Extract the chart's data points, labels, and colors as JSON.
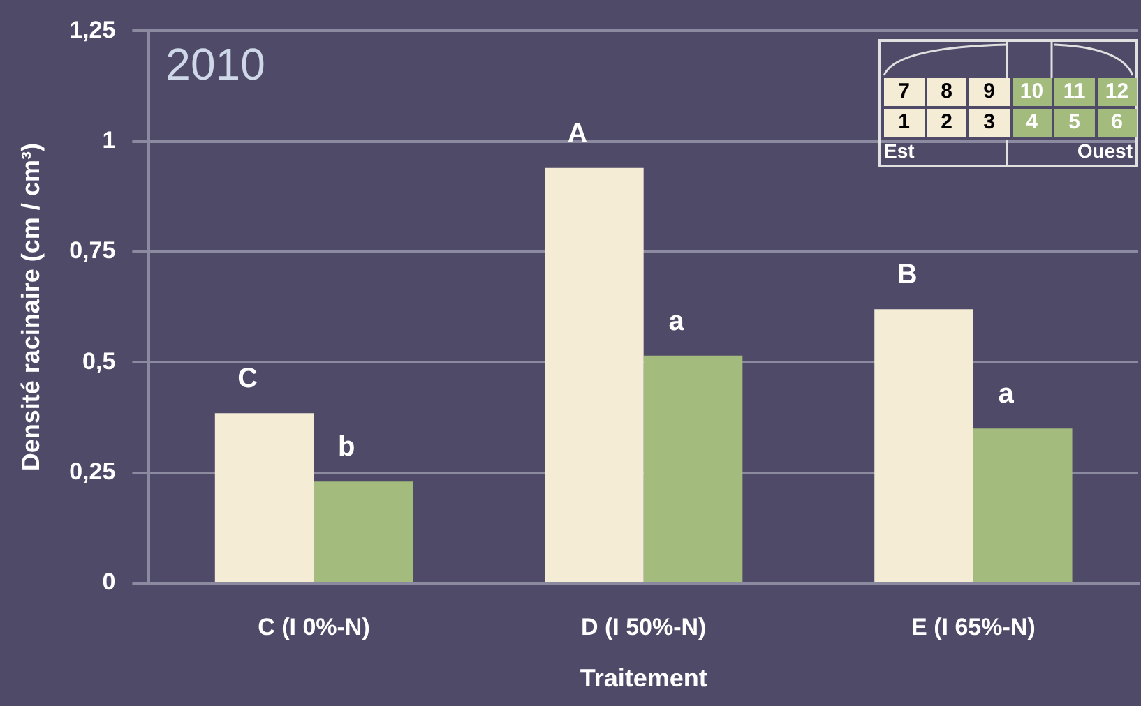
{
  "chart_data": {
    "type": "bar",
    "title": "2010",
    "xlabel": "Traitement",
    "ylabel": "Densité racinaire (cm / cm³)",
    "categories": [
      "C (I 0%-N)",
      "D (I 50%-N)",
      "E (I 65%-N)"
    ],
    "series": [
      {
        "name": "Est",
        "color": "#f5ecd6",
        "values": [
          0.385,
          0.94,
          0.62
        ],
        "value_labels": [
          "C",
          "A",
          "B"
        ]
      },
      {
        "name": "Ouest",
        "color": "#a3bb7c",
        "values": [
          0.23,
          0.515,
          0.35
        ],
        "value_labels": [
          "b",
          "a",
          "a"
        ]
      }
    ],
    "ylim": [
      0,
      1.25
    ],
    "yticks": [
      0,
      {
        "value": 0.25,
        "label": "0,25"
      },
      {
        "value": 0.5,
        "label": "0,5"
      },
      {
        "value": 0.75,
        "label": "0,75"
      },
      1,
      {
        "value": 1.25,
        "label": "1,25"
      }
    ],
    "grid": "y",
    "legend": "top right",
    "annotations": [
      "7",
      "8",
      "9",
      "10",
      "11",
      "12",
      "1",
      "2",
      "3",
      "4",
      "5",
      "6"
    ]
  }
}
